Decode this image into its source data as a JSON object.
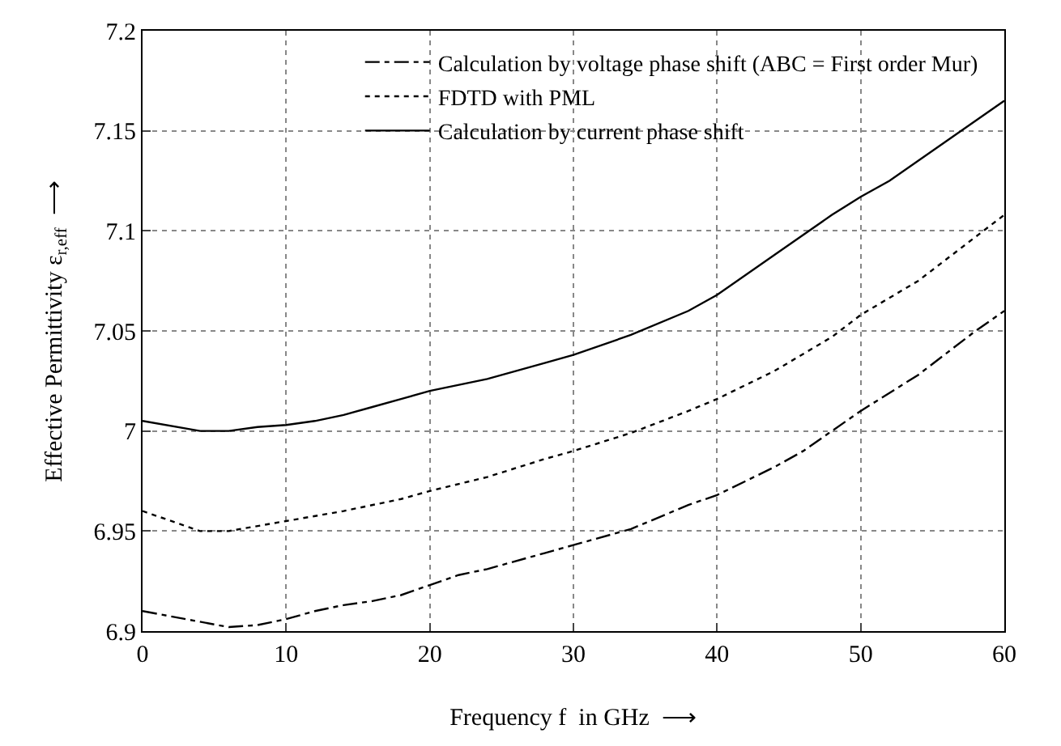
{
  "chart_data": {
    "type": "line",
    "xlabel": "Frequency f  in GHz  ⟶",
    "ylabel": "Effective Permittivity ε$_{r,eff}$  ⟶",
    "xlim": [
      0,
      60
    ],
    "xticks": [
      0,
      10,
      20,
      30,
      40,
      50,
      60
    ],
    "ylim": [
      6.9,
      7.2
    ],
    "yticks": [
      6.9,
      6.95,
      7,
      7.05,
      7.1,
      7.15,
      7.2
    ],
    "grid": true,
    "legend": "top right",
    "marker": "none",
    "series": [
      {
        "name": "Calculation by voltage phase shift (ABC = First order Mur)",
        "color": "#000000",
        "line_style": "dashdot",
        "x": [
          0,
          6,
          8,
          10,
          12,
          14,
          16,
          18,
          20,
          22,
          24,
          28,
          30,
          34,
          38,
          40,
          44,
          46,
          48,
          50,
          54,
          58,
          60
        ],
        "values": [
          6.91,
          6.902,
          6.903,
          6.906,
          6.91,
          6.913,
          6.915,
          6.918,
          6.923,
          6.928,
          6.931,
          6.939,
          6.943,
          6.951,
          6.963,
          6.968,
          6.982,
          6.99,
          7.0,
          7.01,
          7.028,
          7.05,
          7.06
        ]
      },
      {
        "name": "FDTD with PML",
        "color": "#000000",
        "line_style": "dotted",
        "x": [
          0,
          4,
          6,
          10,
          14,
          18,
          20,
          24,
          28,
          30,
          34,
          38,
          40,
          44,
          48,
          50,
          54,
          58,
          60
        ],
        "values": [
          6.96,
          6.95,
          6.95,
          6.955,
          6.96,
          6.966,
          6.97,
          6.977,
          6.986,
          6.99,
          6.999,
          7.01,
          7.016,
          7.03,
          7.047,
          7.058,
          7.075,
          7.097,
          7.108
        ]
      },
      {
        "name": "Calculation by current phase shift",
        "color": "#000000",
        "line_style": "solid",
        "x": [
          0,
          4,
          6,
          8,
          10,
          12,
          14,
          16,
          18,
          20,
          24,
          28,
          30,
          34,
          38,
          40,
          44,
          48,
          50,
          52,
          56,
          60
        ],
        "values": [
          7.005,
          7.0,
          7.0,
          7.002,
          7.003,
          7.005,
          7.008,
          7.012,
          7.016,
          7.02,
          7.026,
          7.034,
          7.038,
          7.048,
          7.06,
          7.068,
          7.088,
          7.108,
          7.117,
          7.125,
          7.145,
          7.165
        ]
      }
    ]
  }
}
